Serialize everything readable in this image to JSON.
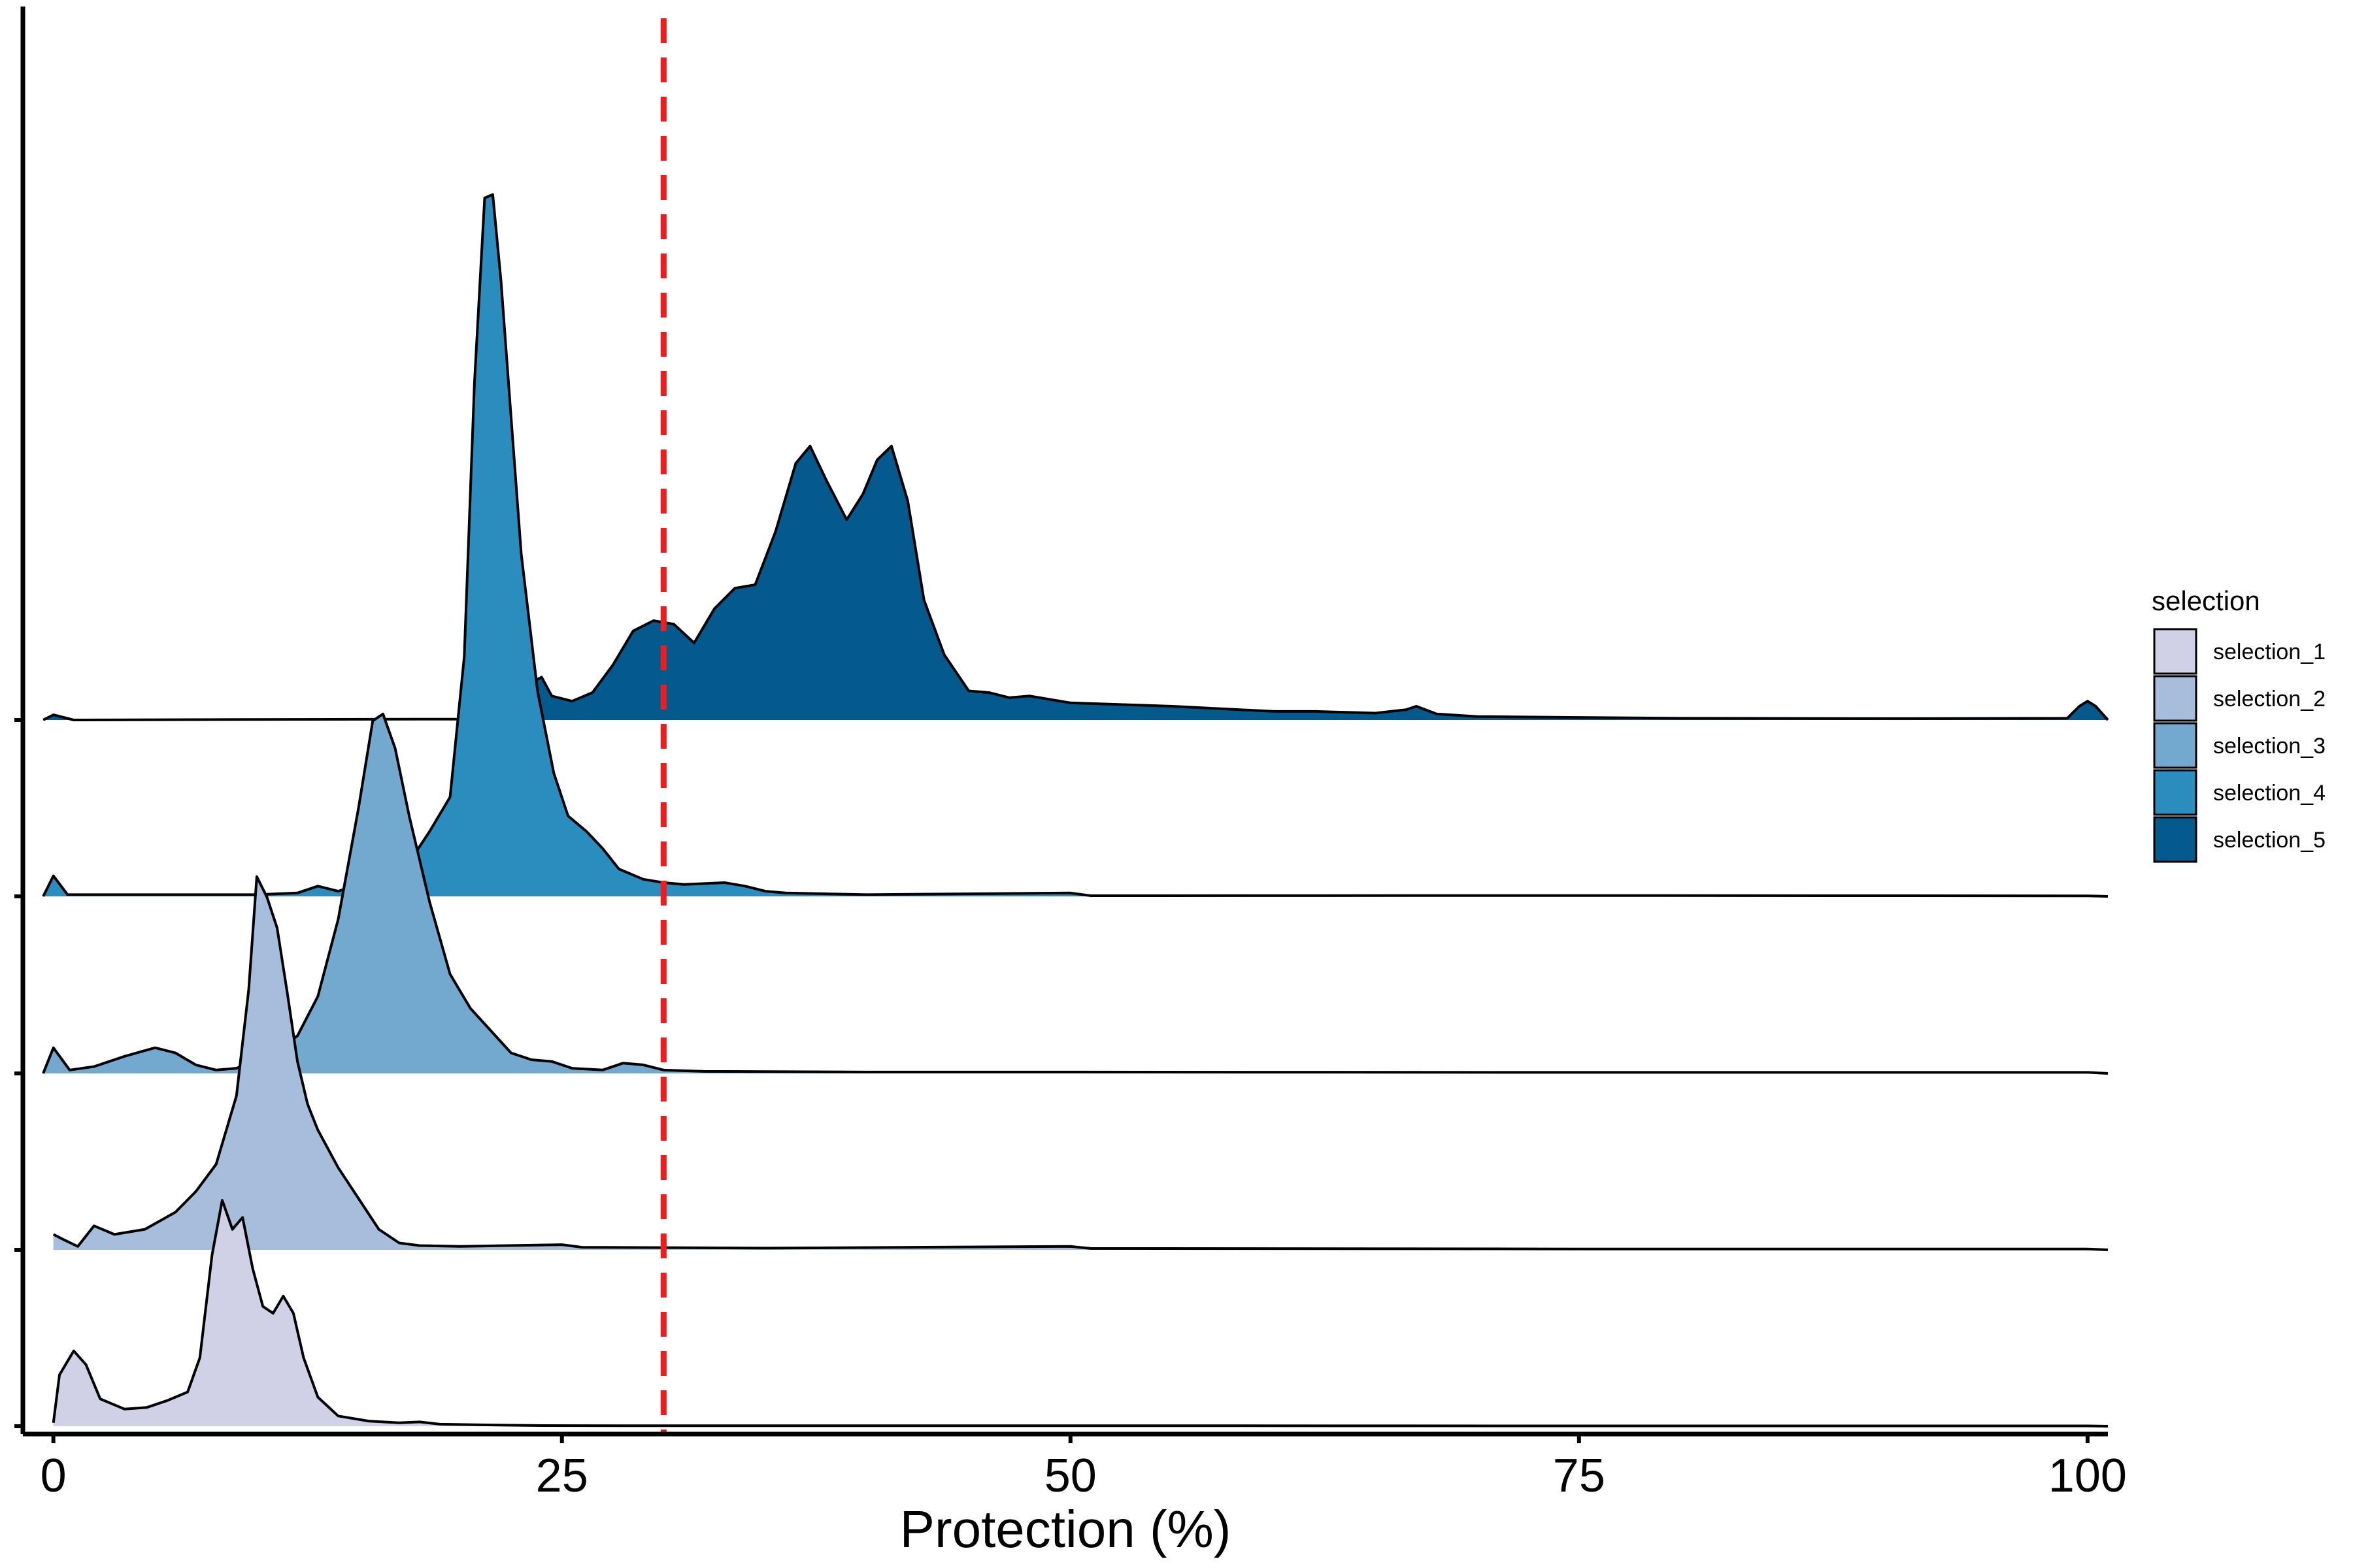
{
  "chart_data": {
    "type": "ridgeline",
    "xlabel": "Protection (%)",
    "ylabel": "",
    "xlim": [
      -1.5,
      101
    ],
    "x_ticks": [
      0,
      25,
      50,
      75,
      100
    ],
    "x_tick_labels": [
      "0",
      "25",
      "50",
      "75",
      "100"
    ],
    "reference_line": {
      "x": 30,
      "style": "dashed",
      "color": "#ee1c1c"
    },
    "grid": false,
    "legend": {
      "title": "selection",
      "position": "right"
    },
    "series": [
      {
        "name": "selection_1",
        "color": "#d0d1e6",
        "points": [
          [
            0,
            0.02
          ],
          [
            0.3,
            0.3
          ],
          [
            1,
            0.44
          ],
          [
            1.6,
            0.36
          ],
          [
            2.3,
            0.16
          ],
          [
            3.5,
            0.1
          ],
          [
            4.6,
            0.11
          ],
          [
            5.6,
            0.15
          ],
          [
            6.6,
            0.2
          ],
          [
            7.2,
            0.4
          ],
          [
            7.8,
            1.0
          ],
          [
            8.3,
            1.32
          ],
          [
            8.8,
            1.15
          ],
          [
            9.3,
            1.22
          ],
          [
            9.8,
            0.92
          ],
          [
            10.3,
            0.7
          ],
          [
            10.8,
            0.66
          ],
          [
            11.3,
            0.76
          ],
          [
            11.8,
            0.66
          ],
          [
            12.3,
            0.4
          ],
          [
            13,
            0.17
          ],
          [
            14,
            0.06
          ],
          [
            15.5,
            0.03
          ],
          [
            17,
            0.02
          ],
          [
            18,
            0.025
          ],
          [
            19,
            0.012
          ],
          [
            21,
            0.008
          ],
          [
            24,
            0.004
          ],
          [
            28,
            0.003
          ],
          [
            35,
            0.003
          ],
          [
            50,
            0.003
          ],
          [
            75,
            0.002
          ],
          [
            100,
            0.002
          ]
        ]
      },
      {
        "name": "selection_2",
        "color": "#a6bddb",
        "points": [
          [
            0,
            0.09
          ],
          [
            0.5,
            0.06
          ],
          [
            1.2,
            0.02
          ],
          [
            2,
            0.14
          ],
          [
            3,
            0.09
          ],
          [
            4.5,
            0.12
          ],
          [
            6,
            0.22
          ],
          [
            7,
            0.34
          ],
          [
            8,
            0.5
          ],
          [
            9,
            0.9
          ],
          [
            9.6,
            1.52
          ],
          [
            10,
            2.18
          ],
          [
            10.5,
            2.06
          ],
          [
            11,
            1.88
          ],
          [
            11.5,
            1.5
          ],
          [
            12,
            1.1
          ],
          [
            12.5,
            0.85
          ],
          [
            13,
            0.7
          ],
          [
            14,
            0.48
          ],
          [
            15,
            0.3
          ],
          [
            16,
            0.12
          ],
          [
            17,
            0.04
          ],
          [
            18,
            0.025
          ],
          [
            20,
            0.02
          ],
          [
            25,
            0.03
          ],
          [
            26,
            0.015
          ],
          [
            35,
            0.01
          ],
          [
            50,
            0.02
          ],
          [
            51,
            0.008
          ],
          [
            75,
            0.005
          ],
          [
            100,
            0.005
          ]
        ]
      },
      {
        "name": "selection_3",
        "color": "#74a9cf",
        "points": [
          [
            -0.5,
            0.0
          ],
          [
            0,
            0.15
          ],
          [
            0.8,
            0.02
          ],
          [
            2,
            0.04
          ],
          [
            3.5,
            0.1
          ],
          [
            5,
            0.15
          ],
          [
            6,
            0.12
          ],
          [
            7,
            0.05
          ],
          [
            8,
            0.02
          ],
          [
            9,
            0.03
          ],
          [
            10,
            0.08
          ],
          [
            11,
            0.13
          ],
          [
            12,
            0.22
          ],
          [
            13,
            0.45
          ],
          [
            14,
            0.9
          ],
          [
            15,
            1.55
          ],
          [
            15.7,
            2.06
          ],
          [
            16.2,
            2.1
          ],
          [
            16.8,
            1.9
          ],
          [
            17.5,
            1.5
          ],
          [
            18.5,
            1.0
          ],
          [
            19.5,
            0.58
          ],
          [
            20.5,
            0.38
          ],
          [
            21.5,
            0.25
          ],
          [
            22.5,
            0.12
          ],
          [
            23.5,
            0.08
          ],
          [
            24.5,
            0.07
          ],
          [
            25.5,
            0.03
          ],
          [
            27,
            0.02
          ],
          [
            28,
            0.06
          ],
          [
            29,
            0.05
          ],
          [
            30,
            0.02
          ],
          [
            32,
            0.012
          ],
          [
            40,
            0.008
          ],
          [
            50,
            0.008
          ],
          [
            75,
            0.006
          ],
          [
            100,
            0.006
          ]
        ]
      },
      {
        "name": "selection_4",
        "color": "#2b8cbe",
        "points": [
          [
            -0.5,
            0.0
          ],
          [
            0,
            0.12
          ],
          [
            0.7,
            0.01
          ],
          [
            5,
            0.01
          ],
          [
            10,
            0.01
          ],
          [
            12,
            0.02
          ],
          [
            13,
            0.06
          ],
          [
            14,
            0.03
          ],
          [
            15,
            0.07
          ],
          [
            16.5,
            0.09
          ],
          [
            17.5,
            0.2
          ],
          [
            18.5,
            0.38
          ],
          [
            19.5,
            0.58
          ],
          [
            20.2,
            1.4
          ],
          [
            20.7,
            3.0
          ],
          [
            21.2,
            4.08
          ],
          [
            21.6,
            4.1
          ],
          [
            22,
            3.6
          ],
          [
            22.5,
            2.8
          ],
          [
            23,
            2.0
          ],
          [
            23.8,
            1.2
          ],
          [
            24.6,
            0.72
          ],
          [
            25.3,
            0.47
          ],
          [
            26.2,
            0.38
          ],
          [
            27,
            0.28
          ],
          [
            27.8,
            0.16
          ],
          [
            29,
            0.1
          ],
          [
            30,
            0.08
          ],
          [
            31,
            0.07
          ],
          [
            33,
            0.08
          ],
          [
            34,
            0.06
          ],
          [
            35,
            0.03
          ],
          [
            36,
            0.02
          ],
          [
            40,
            0.01
          ],
          [
            50,
            0.02
          ],
          [
            51,
            0.004
          ],
          [
            75,
            0.005
          ],
          [
            100,
            0.003
          ]
        ]
      },
      {
        "name": "selection_5",
        "color": "#045a8d",
        "points": [
          [
            -0.5,
            0.0
          ],
          [
            0,
            0.03
          ],
          [
            1,
            0.0
          ],
          [
            10,
            0.003
          ],
          [
            20,
            0.005
          ],
          [
            21,
            0.01
          ],
          [
            22,
            0.05
          ],
          [
            23,
            0.1
          ],
          [
            23.5,
            0.22
          ],
          [
            24,
            0.25
          ],
          [
            24.5,
            0.14
          ],
          [
            25.5,
            0.11
          ],
          [
            26.5,
            0.16
          ],
          [
            27.5,
            0.32
          ],
          [
            28.5,
            0.52
          ],
          [
            29.5,
            0.58
          ],
          [
            30.5,
            0.56
          ],
          [
            31.5,
            0.45
          ],
          [
            32.5,
            0.65
          ],
          [
            33.5,
            0.77
          ],
          [
            34.5,
            0.79
          ],
          [
            35.5,
            1.1
          ],
          [
            36.5,
            1.5
          ],
          [
            37.2,
            1.6
          ],
          [
            38,
            1.4
          ],
          [
            39,
            1.17
          ],
          [
            39.8,
            1.32
          ],
          [
            40.5,
            1.52
          ],
          [
            41.2,
            1.6
          ],
          [
            42,
            1.28
          ],
          [
            42.8,
            0.7
          ],
          [
            43.8,
            0.38
          ],
          [
            45,
            0.17
          ],
          [
            46,
            0.16
          ],
          [
            47,
            0.13
          ],
          [
            48,
            0.14
          ],
          [
            49,
            0.12
          ],
          [
            50,
            0.1
          ],
          [
            55,
            0.08
          ],
          [
            60,
            0.05
          ],
          [
            62,
            0.05
          ],
          [
            65,
            0.04
          ],
          [
            66.5,
            0.06
          ],
          [
            67,
            0.08
          ],
          [
            68,
            0.035
          ],
          [
            70,
            0.02
          ],
          [
            75,
            0.015
          ],
          [
            80,
            0.01
          ],
          [
            90,
            0.008
          ],
          [
            99,
            0.01
          ],
          [
            99.6,
            0.08
          ],
          [
            100,
            0.11
          ],
          [
            100.4,
            0.08
          ],
          [
            101,
            0.0
          ]
        ]
      }
    ]
  }
}
